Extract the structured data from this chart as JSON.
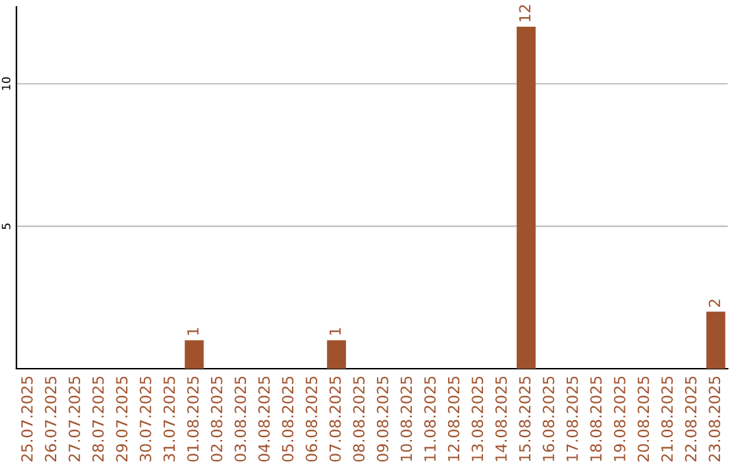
{
  "chart_data": {
    "type": "bar",
    "categories": [
      "25.07.2025",
      "26.07.2025",
      "27.07.2025",
      "28.07.2025",
      "29.07.2025",
      "30.07.2025",
      "31.07.2025",
      "01.08.2025",
      "02.08.2025",
      "03.08.2025",
      "04.08.2025",
      "05.08.2025",
      "06.08.2025",
      "07.08.2025",
      "08.08.2025",
      "09.08.2025",
      "10.08.2025",
      "11.08.2025",
      "12.08.2025",
      "13.08.2025",
      "14.08.2025",
      "15.08.2025",
      "16.08.2025",
      "17.08.2025",
      "18.08.2025",
      "19.08.2025",
      "20.08.2025",
      "21.08.2025",
      "22.08.2025",
      "23.08.2025"
    ],
    "values": [
      0,
      0,
      0,
      0,
      0,
      0,
      0,
      1,
      0,
      0,
      0,
      0,
      0,
      1,
      0,
      0,
      0,
      0,
      0,
      0,
      0,
      12,
      0,
      0,
      0,
      0,
      0,
      0,
      0,
      2
    ],
    "value_labels": [
      null,
      null,
      null,
      null,
      null,
      null,
      null,
      "1",
      null,
      null,
      null,
      null,
      null,
      "1",
      null,
      null,
      null,
      null,
      null,
      null,
      null,
      "12",
      null,
      null,
      null,
      null,
      null,
      null,
      null,
      "2"
    ],
    "color": "#a0522d",
    "ylim": [
      0,
      12.7
    ],
    "yticks": [
      5,
      10
    ],
    "grid": "y"
  }
}
